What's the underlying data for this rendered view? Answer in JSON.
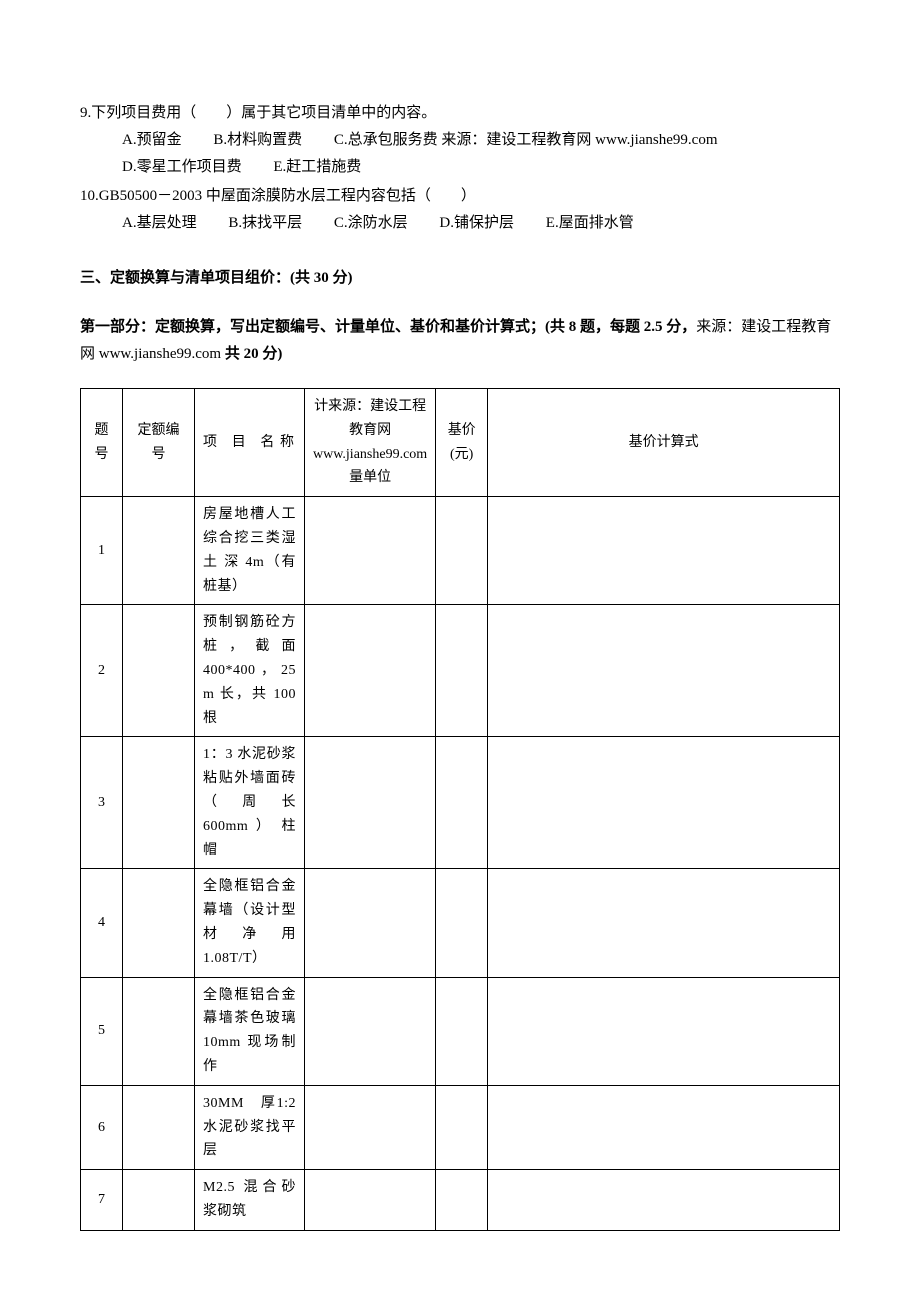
{
  "questions": [
    {
      "number": "9.",
      "text": "下列项目费用（　　）属于其它项目清单中的内容。",
      "option_lines": [
        [
          {
            "label": "A.",
            "text": "预留金"
          },
          {
            "label": "B.",
            "text": "材料购置费"
          },
          {
            "label": "C.",
            "text": "总承包服务费 来源：建设工程教育网 www.jianshe99.com"
          }
        ],
        [
          {
            "label": "D.",
            "text": "零星工作项目费"
          },
          {
            "label": "E.",
            "text": "赶工措施费"
          }
        ]
      ]
    },
    {
      "number": "10.",
      "text": "GB50500－2003 中屋面涂膜防水层工程内容包括（　　）",
      "option_lines": [
        [
          {
            "label": "A.",
            "text": "基层处理"
          },
          {
            "label": "B.",
            "text": "抹找平层"
          },
          {
            "label": "C.",
            "text": "涂防水层"
          },
          {
            "label": "D.",
            "text": "铺保护层"
          },
          {
            "label": "E.",
            "text": "屋面排水管"
          }
        ]
      ]
    }
  ],
  "section3": {
    "title": "三、定额换算与清单项目组价：(共 30 分)",
    "subsection_bold": "第一部分：定额换算，写出定额编号、计量单位、基价和基价计算式；(共 8 题，每题 2.5 分，",
    "subsection_rest": "来源：建设工程教育网 www.jianshe99.com ",
    "subsection_bold2": "共 20 分)"
  },
  "table": {
    "headers": {
      "num": "题号",
      "code": "定额编号",
      "name": "项 目 名称",
      "unit": "计来源：建设工程教育网www.jianshe99.com 量单位",
      "price": "基价(元)",
      "formula": "基价计算式"
    },
    "rows": [
      {
        "num": "1",
        "name": "房屋地槽人工综合挖三类湿土 深 4m（有桩基）"
      },
      {
        "num": "2",
        "name": "预制钢筋砼方桩，截面 400*400，25 m 长，共 100 根"
      },
      {
        "num": "3",
        "name": "1：3 水泥砂浆粘贴外墙面砖（ 周 长600mm ） 柱帽"
      },
      {
        "num": "4",
        "name": "全隐框铝合金幕墙（设计型材 净 用1.08T/T）"
      },
      {
        "num": "5",
        "name": "全隐框铝合金幕墙茶色玻璃10mm 现场制作"
      },
      {
        "num": "6",
        "name": "30MM　厚1:2 水泥砂浆找平层"
      },
      {
        "num": "7",
        "name": "M2.5 混合砂浆砌筑"
      }
    ]
  }
}
